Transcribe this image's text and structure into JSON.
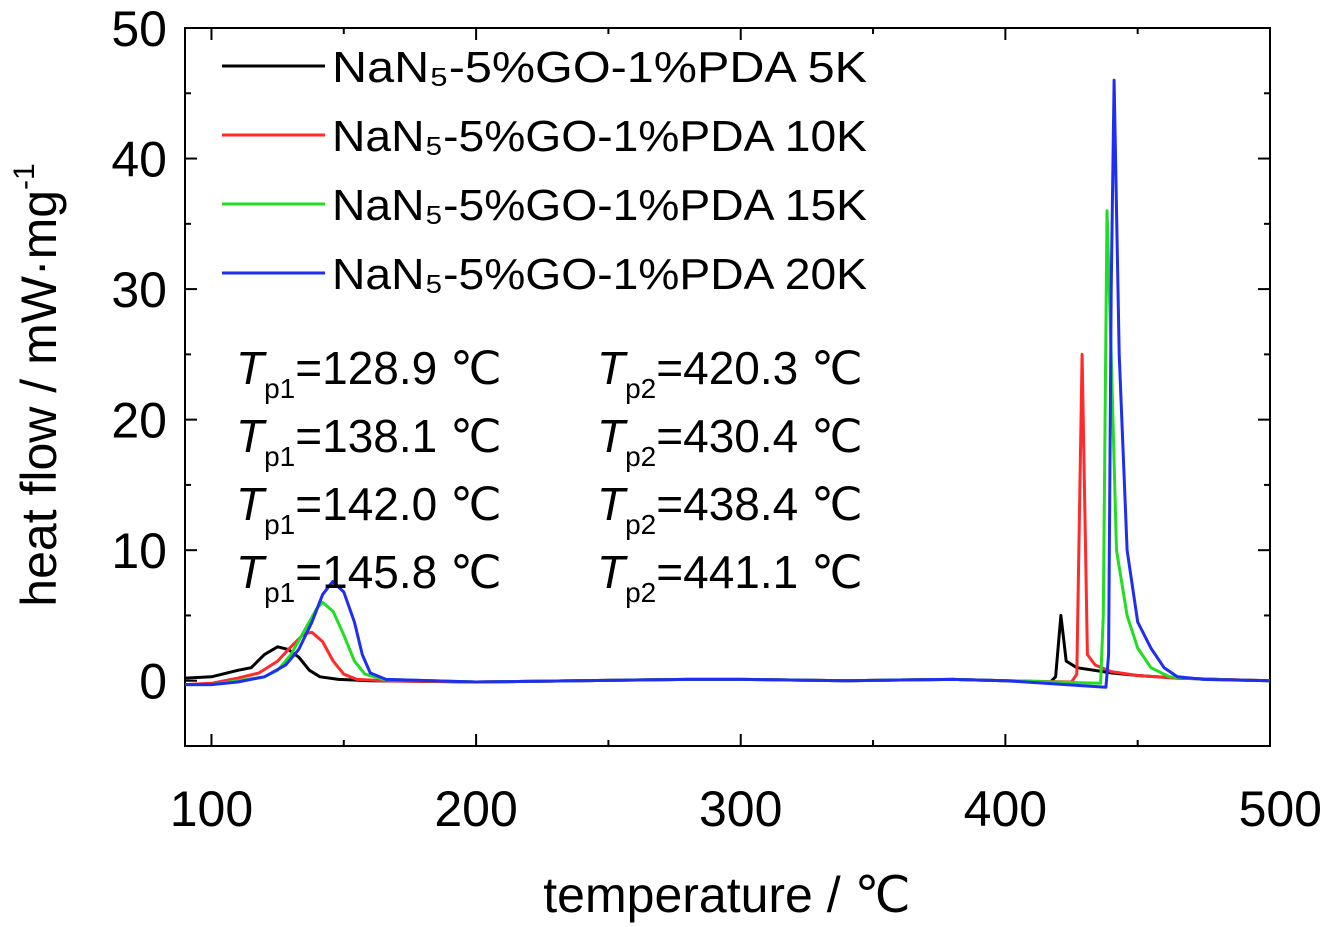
{
  "chart_data": {
    "type": "line",
    "xlabel": "temperature / ℃",
    "ylabel": "heat flow / mW·mg",
    "ylabel_sup": "-1",
    "xlim": [
      90,
      500
    ],
    "ylim": [
      -5,
      50
    ],
    "xticks": [
      100,
      200,
      300,
      400,
      500
    ],
    "yticks": [
      0,
      10,
      20,
      30,
      40,
      50
    ],
    "grid": false,
    "legend_position": "top-left",
    "series": [
      {
        "name": "NaN₅-5%GO-1%PDA 5K",
        "color": "#000000",
        "points": [
          [
            90,
            0.2
          ],
          [
            100,
            0.3
          ],
          [
            110,
            0.8
          ],
          [
            115,
            1.0
          ],
          [
            120,
            2.0
          ],
          [
            125,
            2.6
          ],
          [
            129,
            2.4
          ],
          [
            133,
            1.8
          ],
          [
            137,
            0.8
          ],
          [
            141,
            0.3
          ],
          [
            148,
            0.1
          ],
          [
            160,
            0.0
          ],
          [
            200,
            -0.1
          ],
          [
            280,
            0.1
          ],
          [
            300,
            0.1
          ],
          [
            340,
            0.0
          ],
          [
            380,
            0.1
          ],
          [
            400,
            0.0
          ],
          [
            417,
            -0.1
          ],
          [
            419,
            0.3
          ],
          [
            421,
            5.0
          ],
          [
            423,
            1.5
          ],
          [
            427,
            1.0
          ],
          [
            440,
            0.6
          ],
          [
            450,
            0.4
          ],
          [
            465,
            0.2
          ],
          [
            480,
            0.1
          ],
          [
            500,
            0.0
          ]
        ]
      },
      {
        "name": "NaN₅-5%GO-1%PDA 10K",
        "color": "#ff2a2a",
        "points": [
          [
            90,
            -0.3
          ],
          [
            100,
            -0.2
          ],
          [
            110,
            0.2
          ],
          [
            118,
            0.6
          ],
          [
            125,
            1.5
          ],
          [
            130,
            2.6
          ],
          [
            135,
            3.6
          ],
          [
            138,
            3.7
          ],
          [
            142,
            3.0
          ],
          [
            146,
            1.5
          ],
          [
            150,
            0.5
          ],
          [
            155,
            0.1
          ],
          [
            165,
            0.0
          ],
          [
            200,
            -0.1
          ],
          [
            280,
            0.1
          ],
          [
            300,
            0.1
          ],
          [
            340,
            0.0
          ],
          [
            380,
            0.1
          ],
          [
            400,
            0.0
          ],
          [
            425,
            -0.1
          ],
          [
            427,
            0.5
          ],
          [
            429,
            25.0
          ],
          [
            431,
            2.0
          ],
          [
            434,
            1.2
          ],
          [
            440,
            0.7
          ],
          [
            450,
            0.4
          ],
          [
            465,
            0.2
          ],
          [
            480,
            0.1
          ],
          [
            500,
            0.0
          ]
        ]
      },
      {
        "name": "NaN₅-5%GO-1%PDA 15K",
        "color": "#22dd22",
        "points": [
          [
            90,
            -0.3
          ],
          [
            100,
            -0.3
          ],
          [
            110,
            0.0
          ],
          [
            120,
            0.3
          ],
          [
            125,
            0.8
          ],
          [
            130,
            2.0
          ],
          [
            135,
            3.8
          ],
          [
            140,
            5.6
          ],
          [
            142,
            6.0
          ],
          [
            146,
            5.3
          ],
          [
            150,
            3.5
          ],
          [
            154,
            1.5
          ],
          [
            158,
            0.5
          ],
          [
            165,
            0.1
          ],
          [
            200,
            -0.1
          ],
          [
            280,
            0.1
          ],
          [
            300,
            0.1
          ],
          [
            340,
            0.0
          ],
          [
            380,
            0.1
          ],
          [
            400,
            0.0
          ],
          [
            436,
            -0.2
          ],
          [
            437,
            5.0
          ],
          [
            438.4,
            36.0
          ],
          [
            440,
            25.0
          ],
          [
            442,
            10.0
          ],
          [
            446,
            5.0
          ],
          [
            450,
            2.5
          ],
          [
            455,
            1.0
          ],
          [
            462,
            0.3
          ],
          [
            475,
            0.1
          ],
          [
            500,
            0.0
          ]
        ]
      },
      {
        "name": "NaN₅-5%GO-1%PDA 20K",
        "color": "#1f2ef0",
        "points": [
          [
            90,
            -0.3
          ],
          [
            100,
            -0.3
          ],
          [
            110,
            -0.1
          ],
          [
            120,
            0.3
          ],
          [
            128,
            1.2
          ],
          [
            133,
            2.4
          ],
          [
            138,
            4.5
          ],
          [
            142,
            6.6
          ],
          [
            145.8,
            7.6
          ],
          [
            150,
            6.8
          ],
          [
            154,
            4.5
          ],
          [
            157,
            2.0
          ],
          [
            160,
            0.6
          ],
          [
            166,
            0.1
          ],
          [
            200,
            -0.1
          ],
          [
            280,
            0.1
          ],
          [
            300,
            0.1
          ],
          [
            340,
            0.0
          ],
          [
            380,
            0.1
          ],
          [
            400,
            0.0
          ],
          [
            438,
            -0.5
          ],
          [
            439,
            2.0
          ],
          [
            440,
            30.0
          ],
          [
            441.1,
            46.0
          ],
          [
            443,
            25.0
          ],
          [
            446,
            10.0
          ],
          [
            450,
            4.5
          ],
          [
            455,
            2.5
          ],
          [
            460,
            1.0
          ],
          [
            465,
            0.3
          ],
          [
            475,
            0.1
          ],
          [
            500,
            0.0
          ]
        ]
      }
    ],
    "annotations": [
      {
        "sym": "T",
        "sub": "p1",
        "value": "=128.9 ℃"
      },
      {
        "sym": "T",
        "sub": "p1",
        "value": "=138.1 ℃"
      },
      {
        "sym": "T",
        "sub": "p1",
        "value": "=142.0 ℃"
      },
      {
        "sym": "T",
        "sub": "p1",
        "value": "=145.8 ℃"
      },
      {
        "sym": "T",
        "sub": "p2",
        "value": "=420.3 ℃"
      },
      {
        "sym": "T",
        "sub": "p2",
        "value": "=430.4 ℃"
      },
      {
        "sym": "T",
        "sub": "p2",
        "value": "=438.4 ℃"
      },
      {
        "sym": "T",
        "sub": "p2",
        "value": "=441.1 ℃"
      }
    ]
  }
}
